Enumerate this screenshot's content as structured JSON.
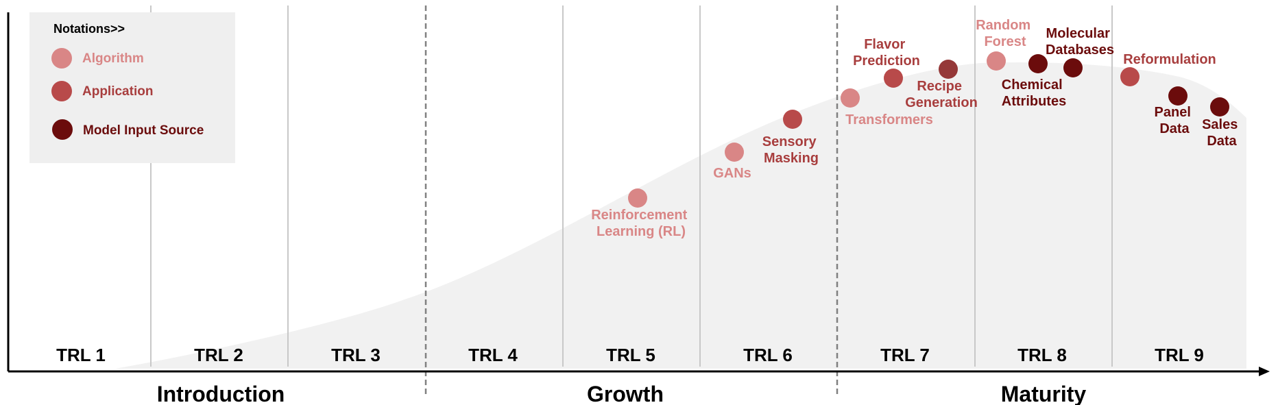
{
  "legend": {
    "title": "Notations>>",
    "items": [
      {
        "label": "Algorithm",
        "category": "algorithm"
      },
      {
        "label": "Application",
        "category": "application"
      },
      {
        "label": "Model Input Source",
        "category": "input"
      }
    ]
  },
  "colors": {
    "algorithm": "#d98686",
    "algorithm_text": "#d98686",
    "application": "#b84a4a",
    "application_text": "#a83e3e",
    "input": "#6b0c0c",
    "input_text": "#6b0c0c",
    "curve_fill": "#f1f1f1",
    "legend_bg": "#efefef",
    "divider": "#c8c8c8",
    "phase_divider": "#808080",
    "axis": "#000000"
  },
  "trl": {
    "items": [
      {
        "label": "TRL 1"
      },
      {
        "label": "TRL 2"
      },
      {
        "label": "TRL 3"
      },
      {
        "label": "TRL 4"
      },
      {
        "label": "TRL 5"
      },
      {
        "label": "TRL 6"
      },
      {
        "label": "TRL 7"
      },
      {
        "label": "TRL 8"
      },
      {
        "label": "TRL 9"
      }
    ]
  },
  "phases": {
    "items": [
      {
        "label": "Introduction"
      },
      {
        "label": "Growth"
      },
      {
        "label": "Maturity"
      }
    ]
  },
  "nodes": [
    {
      "lines": [
        "Reinforcement",
        "Learning (RL)"
      ],
      "category": "algorithm"
    },
    {
      "lines": [
        "GANs"
      ],
      "category": "algorithm"
    },
    {
      "lines": [
        "Sensory",
        "Masking"
      ],
      "category": "application"
    },
    {
      "lines": [
        "Transformers"
      ],
      "category": "algorithm"
    },
    {
      "lines": [
        "Flavor",
        "Prediction"
      ],
      "category": "application"
    },
    {
      "lines": [
        "Recipe",
        "Generation"
      ],
      "category": "application"
    },
    {
      "lines": [
        "Random",
        "Forest"
      ],
      "category": "algorithm"
    },
    {
      "lines": [
        "Chemical",
        "Attributes"
      ],
      "category": "input"
    },
    {
      "lines": [
        "Molecular",
        "Databases"
      ],
      "category": "input"
    },
    {
      "lines": [
        "Reformulation"
      ],
      "category": "application"
    },
    {
      "lines": [
        "Panel",
        "Data"
      ],
      "category": "input"
    },
    {
      "lines": [
        "Sales",
        "Data"
      ],
      "category": "input"
    }
  ]
}
